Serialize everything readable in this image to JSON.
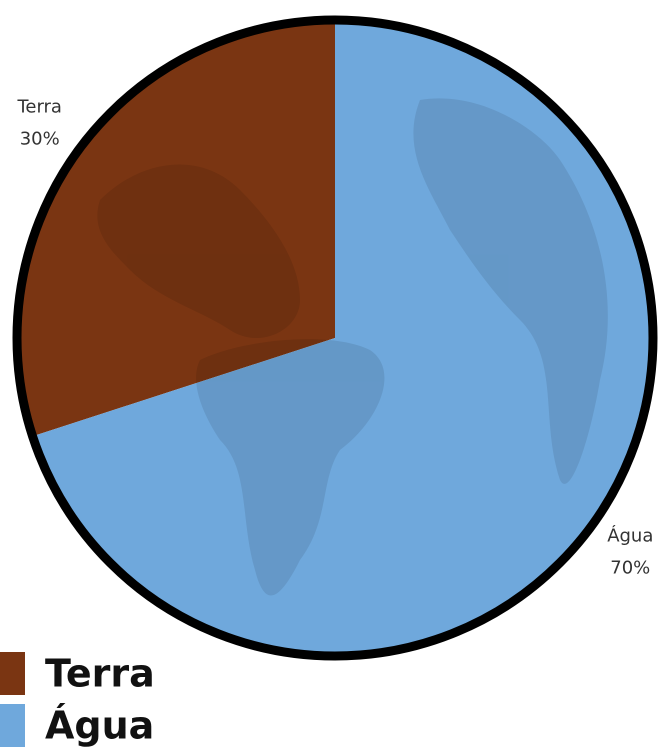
{
  "chart_data": {
    "type": "pie",
    "categories": [
      "Terra",
      "Água"
    ],
    "values": [
      30,
      70
    ],
    "value_labels": [
      "30%",
      "70%"
    ],
    "colors": [
      "#7a3512",
      "#6fa8dc"
    ]
  }
}
